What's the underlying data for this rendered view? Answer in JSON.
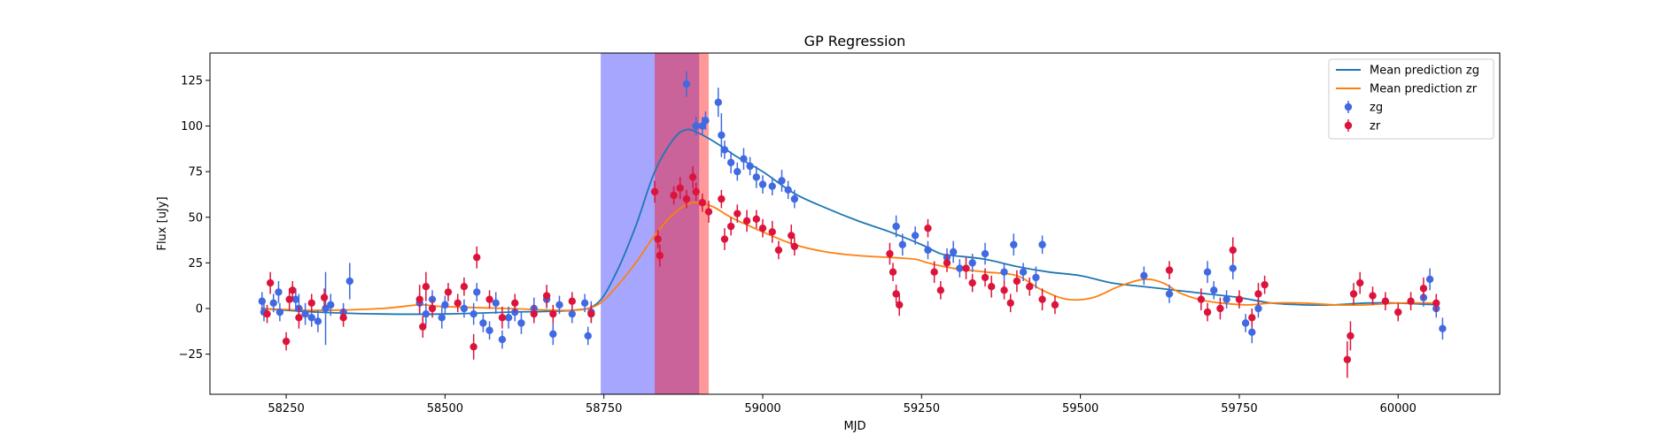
{
  "chart_data": {
    "type": "scatter",
    "title": "GP Regression",
    "xlabel": "MJD",
    "ylabel": "Flux [uJy]",
    "xlim": [
      58130,
      60160
    ],
    "ylim": [
      -47,
      140
    ],
    "xticks": [
      58250,
      58500,
      58750,
      59000,
      59250,
      59500,
      59750,
      60000
    ],
    "yticks": [
      -25,
      0,
      25,
      50,
      75,
      100,
      125
    ],
    "grid": false,
    "legend_position": "top-right",
    "shaded_regions": [
      {
        "x0": 58745,
        "x1": 58900,
        "color": "#0000ff",
        "opacity": 0.35
      },
      {
        "x0": 58830,
        "x1": 58915,
        "color": "#ff0000",
        "opacity": 0.4
      }
    ],
    "lines": [
      {
        "name": "Mean prediction zg",
        "color": "#1f77b4",
        "points": [
          [
            58210,
            0
          ],
          [
            58300,
            -2
          ],
          [
            58400,
            -3
          ],
          [
            58500,
            -3
          ],
          [
            58600,
            -2
          ],
          [
            58700,
            -1
          ],
          [
            58740,
            3
          ],
          [
            58770,
            20
          ],
          [
            58800,
            45
          ],
          [
            58830,
            75
          ],
          [
            58860,
            93
          ],
          [
            58880,
            98
          ],
          [
            58900,
            96
          ],
          [
            58930,
            90
          ],
          [
            58960,
            83
          ],
          [
            59000,
            75
          ],
          [
            59050,
            63
          ],
          [
            59100,
            55
          ],
          [
            59150,
            48
          ],
          [
            59200,
            42
          ],
          [
            59250,
            35
          ],
          [
            59280,
            30
          ],
          [
            59300,
            29
          ],
          [
            59350,
            27
          ],
          [
            59400,
            23
          ],
          [
            59450,
            20
          ],
          [
            59500,
            18
          ],
          [
            59550,
            14
          ],
          [
            59600,
            12
          ],
          [
            59650,
            10
          ],
          [
            59700,
            8
          ],
          [
            59750,
            6
          ],
          [
            59800,
            3
          ],
          [
            59850,
            2
          ],
          [
            59900,
            2
          ],
          [
            59950,
            3
          ],
          [
            60000,
            3
          ],
          [
            60060,
            2
          ]
        ]
      },
      {
        "name": "Mean prediction zr",
        "color": "#ff7f0e",
        "points": [
          [
            58210,
            0
          ],
          [
            58300,
            -1
          ],
          [
            58400,
            0
          ],
          [
            58460,
            2
          ],
          [
            58500,
            1
          ],
          [
            58600,
            0
          ],
          [
            58700,
            -1
          ],
          [
            58740,
            2
          ],
          [
            58770,
            12
          ],
          [
            58800,
            25
          ],
          [
            58830,
            40
          ],
          [
            58860,
            52
          ],
          [
            58890,
            58
          ],
          [
            58920,
            56
          ],
          [
            58950,
            50
          ],
          [
            59000,
            42
          ],
          [
            59050,
            35
          ],
          [
            59100,
            31
          ],
          [
            59150,
            29
          ],
          [
            59200,
            28
          ],
          [
            59240,
            27
          ],
          [
            59260,
            25
          ],
          [
            59300,
            22
          ],
          [
            59350,
            20
          ],
          [
            59400,
            18
          ],
          [
            59440,
            10
          ],
          [
            59480,
            5
          ],
          [
            59520,
            6
          ],
          [
            59560,
            12
          ],
          [
            59600,
            16
          ],
          [
            59630,
            14
          ],
          [
            59660,
            8
          ],
          [
            59700,
            4
          ],
          [
            59760,
            2
          ],
          [
            59800,
            3
          ],
          [
            59850,
            3
          ],
          [
            59900,
            2
          ],
          [
            59950,
            2
          ],
          [
            60000,
            3
          ],
          [
            60060,
            3
          ]
        ]
      }
    ],
    "series": [
      {
        "name": "zg",
        "color": "#4169e1",
        "points": [
          [
            58212,
            4,
            5
          ],
          [
            58215,
            -2,
            5
          ],
          [
            58230,
            3,
            5
          ],
          [
            58238,
            9,
            6
          ],
          [
            58240,
            -2,
            5
          ],
          [
            58265,
            5,
            6
          ],
          [
            58270,
            0,
            8
          ],
          [
            58280,
            -3,
            6
          ],
          [
            58290,
            -5,
            5
          ],
          [
            58300,
            -7,
            6
          ],
          [
            58312,
            0,
            20
          ],
          [
            58320,
            2,
            6
          ],
          [
            58340,
            -2,
            5
          ],
          [
            58350,
            15,
            10
          ],
          [
            58460,
            3,
            6
          ],
          [
            58470,
            -3,
            6
          ],
          [
            58480,
            5,
            5
          ],
          [
            58495,
            -5,
            6
          ],
          [
            58500,
            2,
            5
          ],
          [
            58530,
            0,
            5
          ],
          [
            58545,
            -3,
            6
          ],
          [
            58550,
            9,
            5
          ],
          [
            58560,
            -8,
            5
          ],
          [
            58570,
            -12,
            5
          ],
          [
            58580,
            3,
            6
          ],
          [
            58590,
            -17,
            5
          ],
          [
            58600,
            -5,
            6
          ],
          [
            58610,
            -2,
            5
          ],
          [
            58620,
            -8,
            6
          ],
          [
            58640,
            0,
            6
          ],
          [
            58660,
            5,
            5
          ],
          [
            58670,
            -14,
            6
          ],
          [
            58680,
            2,
            5
          ],
          [
            58700,
            -3,
            5
          ],
          [
            58720,
            3,
            5
          ],
          [
            58725,
            -15,
            5
          ],
          [
            58730,
            -2,
            6
          ],
          [
            58880,
            123,
            7
          ],
          [
            58895,
            100,
            5
          ],
          [
            58905,
            100,
            5
          ],
          [
            58910,
            103,
            5
          ],
          [
            58930,
            113,
            8
          ],
          [
            58935,
            95,
            12
          ],
          [
            58940,
            87,
            5
          ],
          [
            58950,
            80,
            6
          ],
          [
            58960,
            75,
            5
          ],
          [
            58970,
            82,
            6
          ],
          [
            58980,
            78,
            5
          ],
          [
            58990,
            72,
            6
          ],
          [
            59000,
            68,
            5
          ],
          [
            59015,
            67,
            5
          ],
          [
            59030,
            70,
            6
          ],
          [
            59040,
            65,
            5
          ],
          [
            59050,
            60,
            5
          ],
          [
            59210,
            45,
            6
          ],
          [
            59220,
            35,
            6
          ],
          [
            59240,
            40,
            5
          ],
          [
            59260,
            32,
            5
          ],
          [
            59290,
            28,
            5
          ],
          [
            59300,
            31,
            6
          ],
          [
            59310,
            22,
            5
          ],
          [
            59330,
            25,
            5
          ],
          [
            59350,
            30,
            6
          ],
          [
            59380,
            20,
            5
          ],
          [
            59395,
            35,
            6
          ],
          [
            59410,
            20,
            5
          ],
          [
            59430,
            17,
            6
          ],
          [
            59440,
            35,
            5
          ],
          [
            59600,
            18,
            5
          ],
          [
            59640,
            8,
            5
          ],
          [
            59700,
            20,
            6
          ],
          [
            59710,
            10,
            5
          ],
          [
            59730,
            5,
            5
          ],
          [
            59740,
            22,
            6
          ],
          [
            59760,
            -8,
            5
          ],
          [
            59770,
            -13,
            6
          ],
          [
            59780,
            0,
            5
          ],
          [
            60040,
            6,
            5
          ],
          [
            60050,
            16,
            6
          ],
          [
            60060,
            0,
            5
          ],
          [
            60070,
            -11,
            6
          ]
        ]
      },
      {
        "name": "zr",
        "color": "#dc143c",
        "points": [
          [
            58220,
            -3,
            5
          ],
          [
            58225,
            14,
            6
          ],
          [
            58250,
            -18,
            5
          ],
          [
            58255,
            5,
            6
          ],
          [
            58260,
            10,
            5
          ],
          [
            58270,
            -5,
            6
          ],
          [
            58290,
            3,
            5
          ],
          [
            58310,
            6,
            5
          ],
          [
            58340,
            -5,
            5
          ],
          [
            58460,
            5,
            8
          ],
          [
            58465,
            -10,
            6
          ],
          [
            58470,
            12,
            8
          ],
          [
            58480,
            0,
            5
          ],
          [
            58505,
            9,
            5
          ],
          [
            58520,
            3,
            5
          ],
          [
            58530,
            12,
            5
          ],
          [
            58545,
            -21,
            7
          ],
          [
            58550,
            28,
            6
          ],
          [
            58570,
            5,
            5
          ],
          [
            58590,
            -5,
            6
          ],
          [
            58610,
            3,
            5
          ],
          [
            58640,
            -3,
            5
          ],
          [
            58660,
            7,
            6
          ],
          [
            58670,
            -3,
            5
          ],
          [
            58700,
            4,
            5
          ],
          [
            58730,
            -3,
            5
          ],
          [
            58830,
            64,
            6
          ],
          [
            58835,
            38,
            5
          ],
          [
            58838,
            29,
            6
          ],
          [
            58860,
            62,
            5
          ],
          [
            58870,
            66,
            6
          ],
          [
            58880,
            60,
            5
          ],
          [
            58890,
            72,
            6
          ],
          [
            58895,
            64,
            5
          ],
          [
            58905,
            58,
            5
          ],
          [
            58915,
            53,
            6
          ],
          [
            58935,
            60,
            5
          ],
          [
            58940,
            38,
            6
          ],
          [
            58950,
            45,
            5
          ],
          [
            58960,
            52,
            5
          ],
          [
            58975,
            48,
            6
          ],
          [
            58990,
            49,
            5
          ],
          [
            59000,
            44,
            5
          ],
          [
            59015,
            42,
            6
          ],
          [
            59025,
            32,
            5
          ],
          [
            59045,
            40,
            6
          ],
          [
            59050,
            34,
            5
          ],
          [
            59200,
            30,
            6
          ],
          [
            59205,
            20,
            5
          ],
          [
            59210,
            8,
            5
          ],
          [
            59215,
            2,
            6
          ],
          [
            59260,
            44,
            5
          ],
          [
            59270,
            20,
            6
          ],
          [
            59280,
            10,
            5
          ],
          [
            59290,
            25,
            5
          ],
          [
            59320,
            22,
            6
          ],
          [
            59330,
            14,
            5
          ],
          [
            59350,
            17,
            5
          ],
          [
            59360,
            12,
            6
          ],
          [
            59380,
            10,
            5
          ],
          [
            59390,
            3,
            5
          ],
          [
            59400,
            15,
            6
          ],
          [
            59420,
            12,
            5
          ],
          [
            59440,
            5,
            6
          ],
          [
            59460,
            2,
            5
          ],
          [
            59640,
            21,
            5
          ],
          [
            59690,
            5,
            6
          ],
          [
            59700,
            -2,
            5
          ],
          [
            59720,
            0,
            6
          ],
          [
            59740,
            32,
            7
          ],
          [
            59750,
            5,
            5
          ],
          [
            59770,
            -5,
            5
          ],
          [
            59780,
            8,
            6
          ],
          [
            59790,
            13,
            5
          ],
          [
            59920,
            -28,
            10
          ],
          [
            59925,
            -15,
            8
          ],
          [
            59930,
            8,
            6
          ],
          [
            59940,
            14,
            6
          ],
          [
            59960,
            7,
            5
          ],
          [
            59980,
            4,
            5
          ],
          [
            60000,
            -2,
            5
          ],
          [
            60020,
            4,
            5
          ],
          [
            60040,
            11,
            6
          ],
          [
            60060,
            3,
            5
          ]
        ]
      }
    ]
  }
}
